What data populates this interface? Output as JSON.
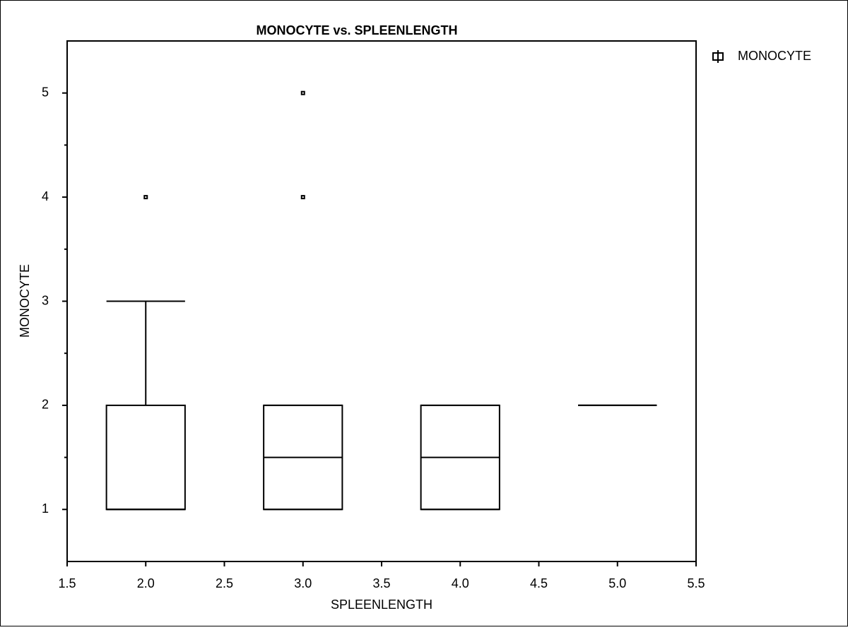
{
  "chart_data": {
    "type": "box",
    "title": "MONOCYTE vs. SPLEENLENGTH",
    "x_label": "SPLEENLENGTH",
    "y_label": "MONOCYTE",
    "xlim": [
      1.5,
      5.5
    ],
    "ylim": [
      0.5,
      5.5
    ],
    "xticks": [
      1.5,
      {
        "value": 2,
        "label": "2.0"
      },
      2.5,
      {
        "value": 3,
        "label": "3.0"
      },
      3.5,
      {
        "value": 4,
        "label": "4.0"
      },
      4.5,
      {
        "value": 5,
        "label": "5.0"
      },
      5.5
    ],
    "yticks": [
      1,
      2,
      3,
      4,
      5
    ],
    "yminorticks": [
      1.5,
      2.5,
      3.5,
      4.5
    ],
    "legend": "top-right",
    "series": [
      {
        "name": "MONOCYTE",
        "color": "#000000",
        "x": [
          2,
          3,
          4,
          5
        ],
        "min": [
          1,
          1,
          1,
          2
        ],
        "q1": [
          1,
          1,
          1,
          2
        ],
        "median": [
          1,
          1.5,
          1.5,
          2
        ],
        "q3": [
          2,
          2,
          2,
          2
        ],
        "max": [
          3,
          2,
          2,
          2
        ],
        "outliers": [
          [
            4
          ],
          [
            4,
            5
          ],
          [],
          []
        ]
      }
    ]
  }
}
